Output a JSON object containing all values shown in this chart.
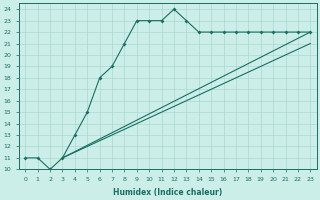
{
  "xlabel": "Humidex (Indice chaleur)",
  "bg_color": "#cceee8",
  "line_color": "#1a6e64",
  "grid_color": "#aad8d0",
  "xlim": [
    -0.5,
    23.5
  ],
  "ylim": [
    10,
    24.5
  ],
  "xticks": [
    0,
    1,
    2,
    3,
    4,
    5,
    6,
    7,
    8,
    9,
    10,
    11,
    12,
    13,
    14,
    15,
    16,
    17,
    18,
    19,
    20,
    21,
    22,
    23
  ],
  "yticks": [
    10,
    11,
    12,
    13,
    14,
    15,
    16,
    17,
    18,
    19,
    20,
    21,
    22,
    23,
    24
  ],
  "series1_x": [
    0,
    1,
    2,
    3,
    4,
    5,
    6,
    7,
    8,
    9,
    10,
    11,
    12,
    13,
    14,
    15,
    16,
    17,
    18,
    19,
    20,
    21,
    22,
    23
  ],
  "series1_y": [
    11,
    11,
    10,
    11,
    13,
    15,
    18,
    19,
    21,
    23,
    23,
    23,
    24,
    23,
    22,
    22,
    22,
    22,
    22,
    22,
    22,
    22,
    22,
    22
  ],
  "line1_x": [
    3,
    23
  ],
  "line1_y": [
    11,
    22
  ],
  "line2_x": [
    3,
    23
  ],
  "line2_y": [
    11,
    21
  ]
}
